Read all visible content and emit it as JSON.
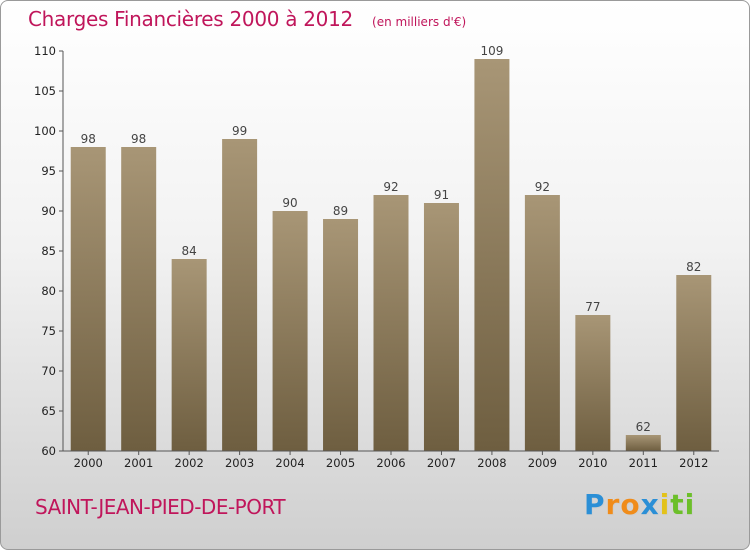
{
  "chart_data": {
    "type": "bar",
    "title": "Charges Financières 2000 à 2012",
    "subtitle": "(en milliers d'€)",
    "categories": [
      "2000",
      "2001",
      "2002",
      "2003",
      "2004",
      "2005",
      "2006",
      "2007",
      "2008",
      "2009",
      "2010",
      "2011",
      "2012"
    ],
    "values": [
      98,
      98,
      84,
      99,
      90,
      89,
      92,
      91,
      109,
      92,
      77,
      62,
      82
    ],
    "ylim": [
      60,
      110
    ],
    "yticks": [
      60,
      65,
      70,
      75,
      80,
      85,
      90,
      95,
      100,
      105,
      110
    ],
    "grid": false,
    "bar_color_top": "#a89676",
    "bar_color_bottom": "#6e5e40"
  },
  "footer": {
    "commune": "SAINT-JEAN-PIED-DE-PORT"
  },
  "logo": {
    "letters": [
      {
        "char": "P",
        "color": "#2b8fd6"
      },
      {
        "char": "r",
        "color": "#f08c1a"
      },
      {
        "char": "o",
        "color": "#f08c1a"
      },
      {
        "char": "x",
        "color": "#2b8fd6"
      },
      {
        "char": "i",
        "color": "#e3c21a"
      },
      {
        "char": "t",
        "color": "#6cbf2a"
      },
      {
        "char": "i",
        "color": "#6cbf2a"
      }
    ]
  },
  "colors": {
    "accent": "#c0165b",
    "axis": "#555555"
  }
}
